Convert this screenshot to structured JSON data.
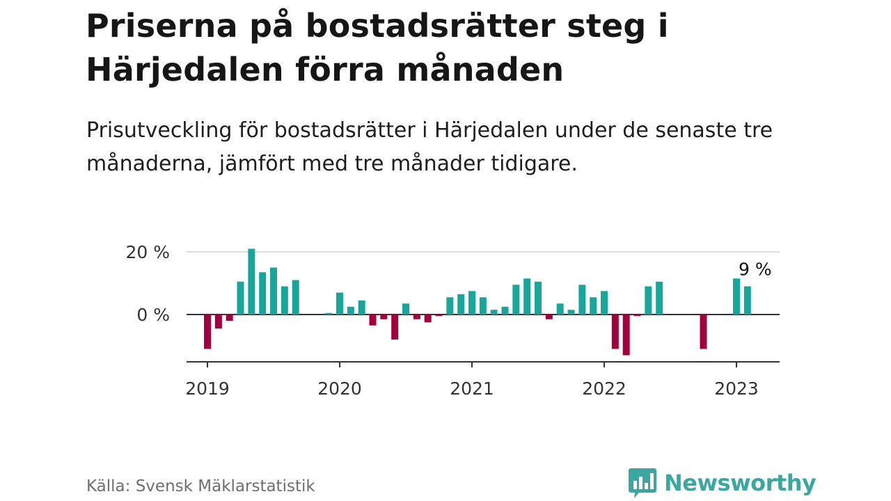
{
  "header": {
    "title": "Priserna på bostadsrätter steg i Härjedalen förra månaden",
    "subtitle": "Prisutveckling för bostadsrätter i Härjedalen under de senaste tre månaderna, jämfört med tre månader tidigare."
  },
  "footer": {
    "source": "Källa: Svensk Mäklarstatistik",
    "brand": "Newsworthy",
    "brand_icon": "bar-chart-speech-bubble-icon"
  },
  "colors": {
    "positive": "#1aa59a",
    "negative": "#a0003c",
    "brand": "#3ba7a0",
    "grid": "#dddddd",
    "axis": "#333333"
  },
  "chart_data": {
    "type": "bar",
    "title": "Priserna på bostadsrätter steg i Härjedalen förra månaden",
    "subtitle": "Prisutveckling för bostadsrätter i Härjedalen under de senaste tre månaderna, jämfört med tre månader tidigare.",
    "xlabel": "",
    "ylabel": "",
    "x_tick_labels": [
      "2019",
      "2020",
      "2021",
      "2022",
      "2023"
    ],
    "y_tick_labels": [
      "0 %",
      "20 %"
    ],
    "y_ticks": [
      0,
      20
    ],
    "ylim": [
      -15,
      21
    ],
    "grid": "horizontal",
    "annotation": {
      "text": "9 %",
      "category": "2023-02"
    },
    "categories": [
      "2019-01",
      "2019-02",
      "2019-03",
      "2019-04",
      "2019-05",
      "2019-06",
      "2019-07",
      "2019-08",
      "2019-09",
      "2019-10",
      "2019-11",
      "2019-12",
      "2020-01",
      "2020-02",
      "2020-03",
      "2020-04",
      "2020-05",
      "2020-06",
      "2020-07",
      "2020-08",
      "2020-09",
      "2020-10",
      "2020-11",
      "2020-12",
      "2021-01",
      "2021-02",
      "2021-03",
      "2021-04",
      "2021-05",
      "2021-06",
      "2021-07",
      "2021-08",
      "2021-09",
      "2021-10",
      "2021-11",
      "2021-12",
      "2022-01",
      "2022-02",
      "2022-03",
      "2022-04",
      "2022-05",
      "2022-06",
      "2022-07",
      "2022-08",
      "2022-09",
      "2022-10",
      "2022-11",
      "2022-12",
      "2023-01",
      "2023-02"
    ],
    "values": [
      -11,
      -4.5,
      -2,
      10.5,
      21,
      13.5,
      15,
      9,
      11,
      null,
      null,
      0.5,
      7,
      2.5,
      4.5,
      -3.5,
      -1.5,
      -8,
      3.5,
      -1.5,
      -2.5,
      -0.5,
      5.5,
      6.5,
      7.5,
      5.5,
      1.5,
      2.5,
      9.5,
      11.5,
      10.5,
      -1.5,
      3.5,
      1.5,
      9.5,
      5.5,
      7.5,
      -11,
      -13,
      -0.5,
      9,
      10.5,
      null,
      null,
      null,
      -11,
      null,
      null,
      11.5,
      9
    ]
  }
}
